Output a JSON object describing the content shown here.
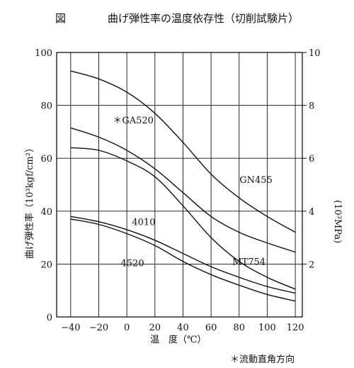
{
  "header": {
    "fig_label": "図",
    "title": "曲げ弾性率の温度依存性（切削試験片）"
  },
  "footnote": "＊流動直角方向",
  "chart_data": {
    "type": "line",
    "title": "曲げ弾性率の温度依存性（切削試験片）",
    "xlabel": "温　度（℃）",
    "ylabel": "曲げ弾性率（10³kgf/cm²）",
    "y2label": "(10³MPa)",
    "xlim": [
      -50,
      125
    ],
    "ylim": [
      0,
      100
    ],
    "y2lim": [
      0,
      10
    ],
    "xticks": [
      "−40",
      "−20",
      "0",
      "20",
      "40",
      "60",
      "80",
      "100",
      "120"
    ],
    "yticks": [
      "0",
      "20",
      "40",
      "60",
      "80",
      "100"
    ],
    "y2ticks": [
      "2",
      "4",
      "6",
      "8",
      "10"
    ],
    "grid": true,
    "series": [
      {
        "name": "GN455",
        "x": [
          -40,
          -20,
          0,
          20,
          40,
          60,
          80,
          100,
          120
        ],
        "y": [
          93,
          90,
          85,
          77,
          66,
          54,
          45,
          38,
          32
        ]
      },
      {
        "name": "＊GA520",
        "x": [
          -40,
          -20,
          0,
          20,
          40,
          60,
          80,
          100,
          120
        ],
        "y": [
          71.5,
          68,
          63,
          56,
          47,
          38,
          32,
          28,
          24.5
        ]
      },
      {
        "name": "MT754",
        "x": [
          -40,
          -20,
          0,
          20,
          40,
          60,
          80,
          100,
          120
        ],
        "y": [
          64,
          63,
          59,
          53,
          42,
          30,
          21,
          15,
          10.5
        ]
      },
      {
        "name": "4010",
        "x": [
          -40,
          -20,
          0,
          20,
          40,
          60,
          80,
          100,
          120
        ],
        "y": [
          38,
          36,
          33,
          29,
          24,
          19,
          15,
          11.5,
          9
        ]
      },
      {
        "name": "4520",
        "x": [
          -40,
          -20,
          0,
          20,
          40,
          60,
          80,
          100,
          120
        ],
        "y": [
          37,
          35,
          31.5,
          27,
          21,
          16,
          12,
          8.5,
          6
        ]
      }
    ]
  }
}
